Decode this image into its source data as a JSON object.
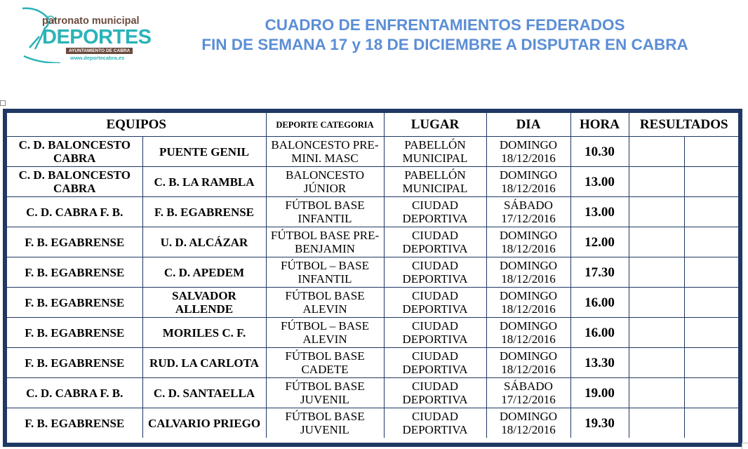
{
  "logo": {
    "line1": "patronato municipal",
    "line2": "DEPORTES",
    "line3": "AYUNTAMIENTO DE CABRA",
    "line4": "www.deportecabra.es",
    "color_primary": "#2ab3b8",
    "color_secondary": "#6b4b3e"
  },
  "title": {
    "line1": "CUADRO DE ENFRENTAMIENTOS FEDERADOS",
    "line2": "FIN DE SEMANA 17 y 18 DE DICIEMBRE A DISPUTAR EN CABRA",
    "color": "#5b8ed6"
  },
  "table": {
    "headers": {
      "equipos": "EQUIPOS",
      "deporte": "DEPORTE CATEGORIA",
      "lugar": "LUGAR",
      "dia": "DIA",
      "hora": "HORA",
      "resultados": "RESULTADOS"
    },
    "rows": [
      {
        "local": "C. D. BALONCESTO CABRA",
        "visitante": "PUENTE GENIL",
        "deporte": "BALONCESTO PRE-MINI. MASC",
        "lugar": "PABELLÓN MUNICIPAL",
        "dia": "DOMINGO 18/12/2016",
        "hora": "10.30"
      },
      {
        "local": "C. D. BALONCESTO CABRA",
        "visitante": "C. B. LA RAMBLA",
        "deporte": "BALONCESTO JÚNIOR",
        "lugar": "PABELLÓN MUNICIPAL",
        "dia": "DOMINGO 18/12/2016",
        "hora": "13.00"
      },
      {
        "local": "C. D. CABRA F. B.",
        "visitante": "F. B. EGABRENSE",
        "deporte": "FÚTBOL BASE INFANTIL",
        "lugar": "CIUDAD DEPORTIVA",
        "dia": "SÁBADO 17/12/2016",
        "hora": "13.00"
      },
      {
        "local": "F. B. EGABRENSE",
        "visitante": "U. D. ALCÁZAR",
        "deporte": "FÚTBOL BASE PRE-BENJAMIN",
        "lugar": "CIUDAD DEPORTIVA",
        "dia": "DOMINGO 18/12/2016",
        "hora": "12.00"
      },
      {
        "local": "F. B. EGABRENSE",
        "visitante": "C. D. APEDEM",
        "deporte": "FÚTBOL – BASE INFANTIL",
        "lugar": "CIUDAD DEPORTIVA",
        "dia": "DOMINGO 18/12/2016",
        "hora": "17.30"
      },
      {
        "local": "F. B. EGABRENSE",
        "visitante": "SALVADOR ALLENDE",
        "deporte": "FÚTBOL BASE ALEVIN",
        "lugar": "CIUDAD DEPORTIVA",
        "dia": "DOMINGO 18/12/2016",
        "hora": "16.00"
      },
      {
        "local": "F. B. EGABRENSE",
        "visitante": "MORILES C. F.",
        "deporte": "FÚTBOL – BASE ALEVIN",
        "lugar": "CIUDAD DEPORTIVA",
        "dia": "DOMINGO 18/12/2016",
        "hora": "16.00"
      },
      {
        "local": "F. B. EGABRENSE",
        "visitante": "RUD. LA CARLOTA",
        "deporte": "FÚTBOL BASE CADETE",
        "lugar": "CIUDAD DEPORTIVA",
        "dia": "DOMINGO 18/12/2016",
        "hora": "13.30"
      },
      {
        "local": "C. D. CABRA F. B.",
        "visitante": "C. D. SANTAELLA",
        "deporte": "FÚTBOL BASE JUVENIL",
        "lugar": "CIUDAD DEPORTIVA",
        "dia": "SÁBADO 17/12/2016",
        "hora": "19.00"
      },
      {
        "local": "F. B. EGABRENSE",
        "visitante": "CALVARIO PRIEGO",
        "deporte": "FÚTBOL BASE JUVENIL",
        "lugar": "CIUDAD DEPORTIVA",
        "dia": "DOMINGO 18/12/2016",
        "hora": "19.30"
      }
    ],
    "border_color": "#1f3864"
  }
}
